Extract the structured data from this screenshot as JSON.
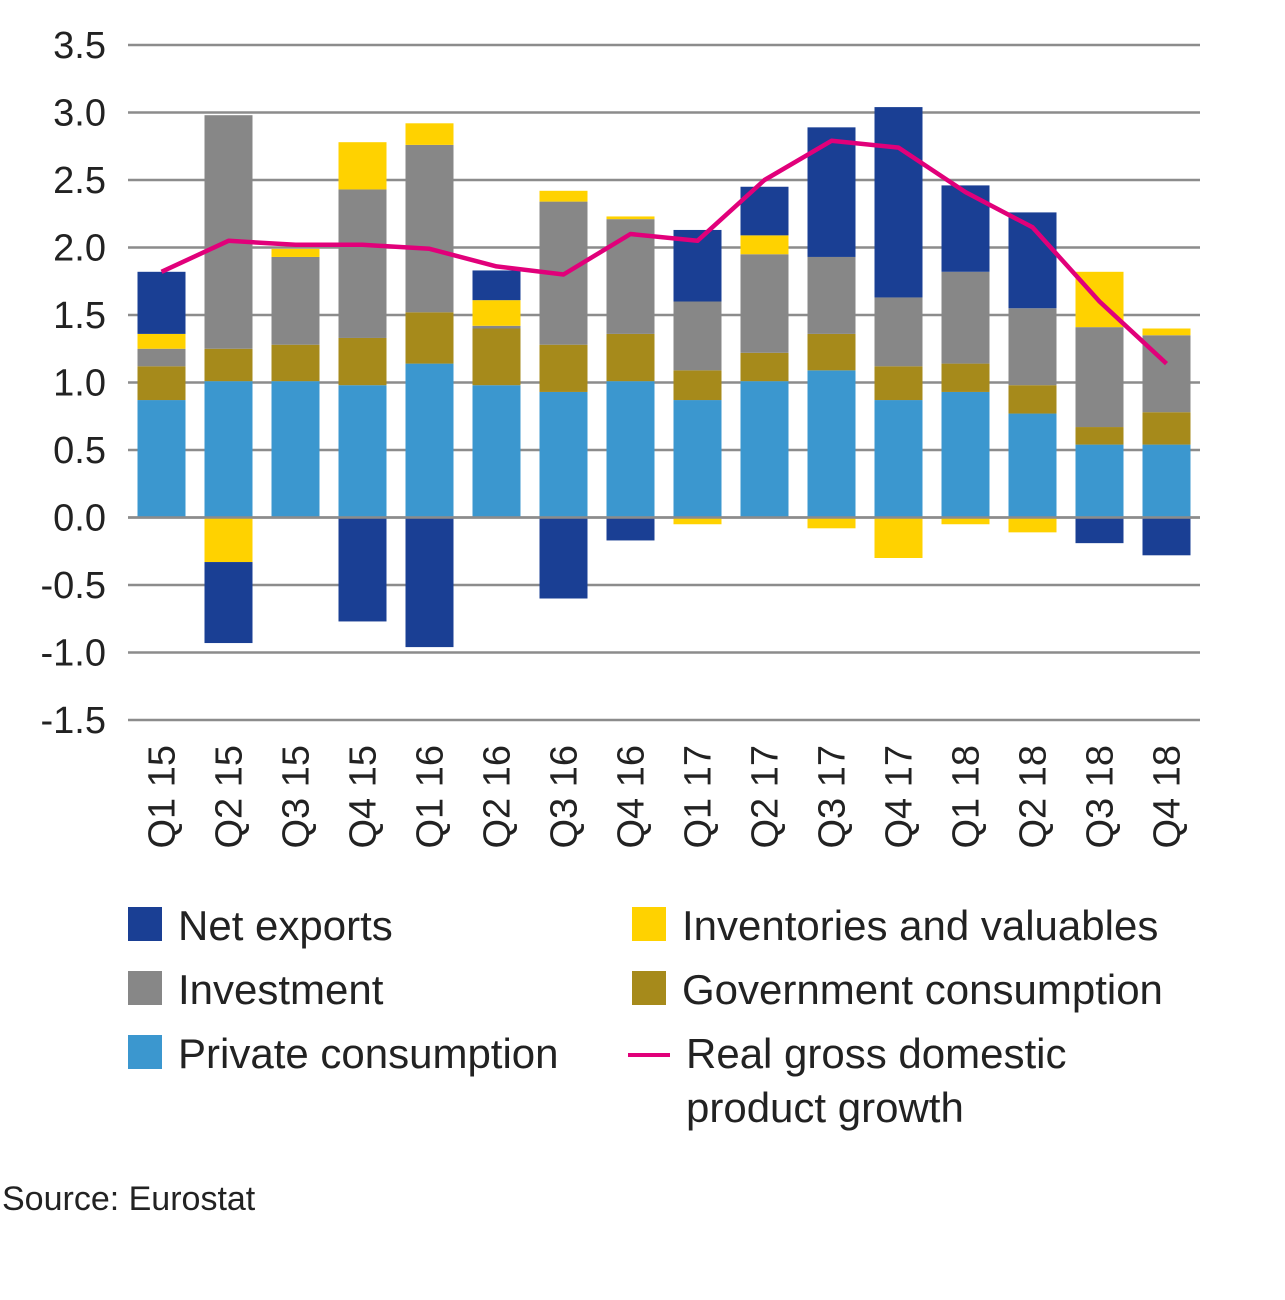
{
  "chart_data": {
    "type": "bar",
    "stacked": true,
    "categories": [
      "Q1 15",
      "Q2 15",
      "Q3 15",
      "Q4 15",
      "Q1 16",
      "Q2 16",
      "Q3 16",
      "Q4 16",
      "Q1 17",
      "Q2 17",
      "Q3 17",
      "Q4 17",
      "Q1 18",
      "Q2 18",
      "Q3 18",
      "Q4 18"
    ],
    "ylim": [
      -1.5,
      3.5
    ],
    "yticks": [
      "3.5",
      "3.0",
      "2.5",
      "2.0",
      "1.5",
      "1.0",
      "0.5",
      "0.0",
      "-0.5",
      "-1.0",
      "-1.5"
    ],
    "ytick_values": [
      3.5,
      3.0,
      2.5,
      2.0,
      1.5,
      1.0,
      0.5,
      0.0,
      -0.5,
      -1.0,
      -1.5
    ],
    "grid": true,
    "series": [
      {
        "name": "Private consumption",
        "color": "#3b97cf",
        "values": [
          0.87,
          1.01,
          1.01,
          0.98,
          1.14,
          0.98,
          0.93,
          1.01,
          0.87,
          1.01,
          1.09,
          0.87,
          0.93,
          0.77,
          0.54,
          0.54
        ]
      },
      {
        "name": "Government consumption",
        "color": "#a68a1b",
        "values": [
          0.25,
          0.24,
          0.27,
          0.35,
          0.38,
          0.42,
          0.35,
          0.35,
          0.22,
          0.21,
          0.27,
          0.25,
          0.21,
          0.21,
          0.13,
          0.24
        ]
      },
      {
        "name": "Investment",
        "color": "#878787",
        "values": [
          0.13,
          1.73,
          0.65,
          1.1,
          1.24,
          0.02,
          1.06,
          0.85,
          0.51,
          0.73,
          0.57,
          0.51,
          0.68,
          0.57,
          0.74,
          0.57
        ]
      },
      {
        "name": "Inventories and valuables",
        "color": "#ffd200",
        "values": [
          0.11,
          -0.33,
          0.06,
          0.35,
          0.16,
          0.19,
          0.08,
          0.02,
          -0.05,
          0.14,
          -0.08,
          -0.3,
          -0.05,
          -0.11,
          0.41,
          0.05
        ]
      },
      {
        "name": "Net exports",
        "color": "#1a3f94",
        "values": [
          0.46,
          -0.6,
          0.0,
          -0.77,
          -0.96,
          0.22,
          -0.6,
          -0.17,
          0.53,
          0.36,
          0.96,
          1.41,
          0.64,
          0.71,
          -0.19,
          -0.28
        ]
      }
    ],
    "line": {
      "name": "Real gross domestic product growth",
      "color": "#e1007a",
      "values": [
        1.82,
        2.05,
        2.02,
        2.02,
        1.99,
        1.86,
        1.8,
        2.1,
        2.05,
        2.5,
        2.79,
        2.74,
        2.41,
        2.15,
        1.6,
        1.14
      ]
    }
  },
  "legend": {
    "net_exports": "Net exports",
    "inventories": "Inventories and valuables",
    "investment": "Investment",
    "government": "Government consumption",
    "private": "Private consumption",
    "gdp_line1": "Real gross domestic",
    "gdp_line2": "product growth"
  },
  "source": "Source: Eurostat"
}
